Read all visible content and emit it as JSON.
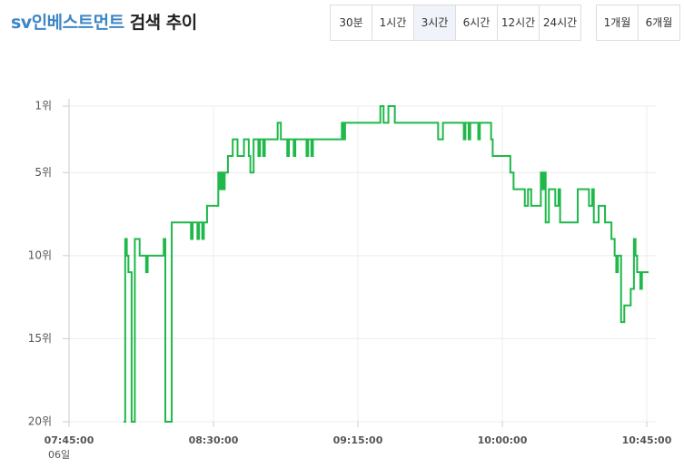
{
  "header": {
    "title_brand": "sv인베스트먼트",
    "title_rest": "검색 추이"
  },
  "tabs": {
    "groups": [
      [
        "30분",
        "1시간",
        "3시간",
        "6시간",
        "12시간",
        "24시간"
      ],
      [
        "1개월",
        "6개월"
      ]
    ],
    "selected": [
      0,
      2
    ]
  },
  "chart_data": {
    "type": "line",
    "step": true,
    "color": "#1fb84a",
    "grid": true,
    "y_inverted": true,
    "x": [
      "08:02:00",
      "08:02:30",
      "08:03:00",
      "08:03:30",
      "08:04:30",
      "08:05:30",
      "08:07:00",
      "08:09:00",
      "08:09:30",
      "08:14:30",
      "08:15:00",
      "08:17:00",
      "08:23:00",
      "08:23:30",
      "08:25:00",
      "08:25:30",
      "08:26:30",
      "08:27:00",
      "08:28:00",
      "08:31:30",
      "08:32:00",
      "08:32:30",
      "08:33:00",
      "08:33:30",
      "08:34:30",
      "08:36:00",
      "08:37:30",
      "08:39:30",
      "08:41:00",
      "08:41:30",
      "08:42:30",
      "08:44:00",
      "08:44:30",
      "08:45:30",
      "08:46:00",
      "08:50:00",
      "08:51:00",
      "08:53:00",
      "08:53:30",
      "08:55:00",
      "08:55:30",
      "08:59:00",
      "08:59:30",
      "09:00:30",
      "09:01:00",
      "09:10:00",
      "09:10:30",
      "09:11:00",
      "09:22:00",
      "09:23:00",
      "09:24:30",
      "09:26:30",
      "09:40:00",
      "09:41:30",
      "09:48:00",
      "09:48:30",
      "09:49:30",
      "09:50:00",
      "09:52:30",
      "09:53:00",
      "09:56:30",
      "09:57:00",
      "10:02:30",
      "10:03:30",
      "10:07:00",
      "10:08:00",
      "10:09:00",
      "10:12:00",
      "10:12:30",
      "10:13:00",
      "10:13:30",
      "10:14:30",
      "10:16:30",
      "10:17:30",
      "10:18:00",
      "10:23:30",
      "10:27:00",
      "10:28:00",
      "10:28:30",
      "10:30:00",
      "10:32:00",
      "10:34:00",
      "10:35:00",
      "10:35:30",
      "10:36:00",
      "10:37:00",
      "10:38:00",
      "10:40:00",
      "10:41:00",
      "10:41:30",
      "10:42:00",
      "10:43:00",
      "10:43:30",
      "10:45:00"
    ],
    "values": [
      20,
      9,
      10,
      11,
      20,
      9,
      10,
      11,
      10,
      9,
      20,
      8,
      9,
      8,
      9,
      8,
      9,
      8,
      7,
      5,
      6,
      5,
      6,
      5,
      4,
      3,
      4,
      3,
      4,
      5,
      3,
      4,
      3,
      4,
      3,
      2,
      3,
      4,
      3,
      4,
      3,
      4,
      3,
      4,
      3,
      2,
      3,
      2,
      1,
      2,
      1,
      2,
      3,
      2,
      3,
      2,
      3,
      2,
      3,
      2,
      3,
      4,
      5,
      6,
      7,
      6,
      7,
      5,
      6,
      5,
      8,
      6,
      7,
      6,
      8,
      6,
      7,
      6,
      8,
      7,
      8,
      9,
      10,
      11,
      10,
      14,
      13,
      12,
      9,
      10,
      11,
      12,
      11,
      11
    ],
    "ylim": [
      1,
      20
    ],
    "yticks": [
      {
        "value": 1,
        "label": "1위"
      },
      {
        "value": 5,
        "label": "5위"
      },
      {
        "value": 10,
        "label": "10위"
      },
      {
        "value": 15,
        "label": "15위"
      },
      {
        "value": 20,
        "label": "20위"
      }
    ],
    "xlim": [
      "07:45:00",
      "10:45:00"
    ],
    "xticks": [
      "07:45:00",
      "08:30:00",
      "09:15:00",
      "10:00:00",
      "10:45:00"
    ],
    "x_sublabel": "06일"
  }
}
